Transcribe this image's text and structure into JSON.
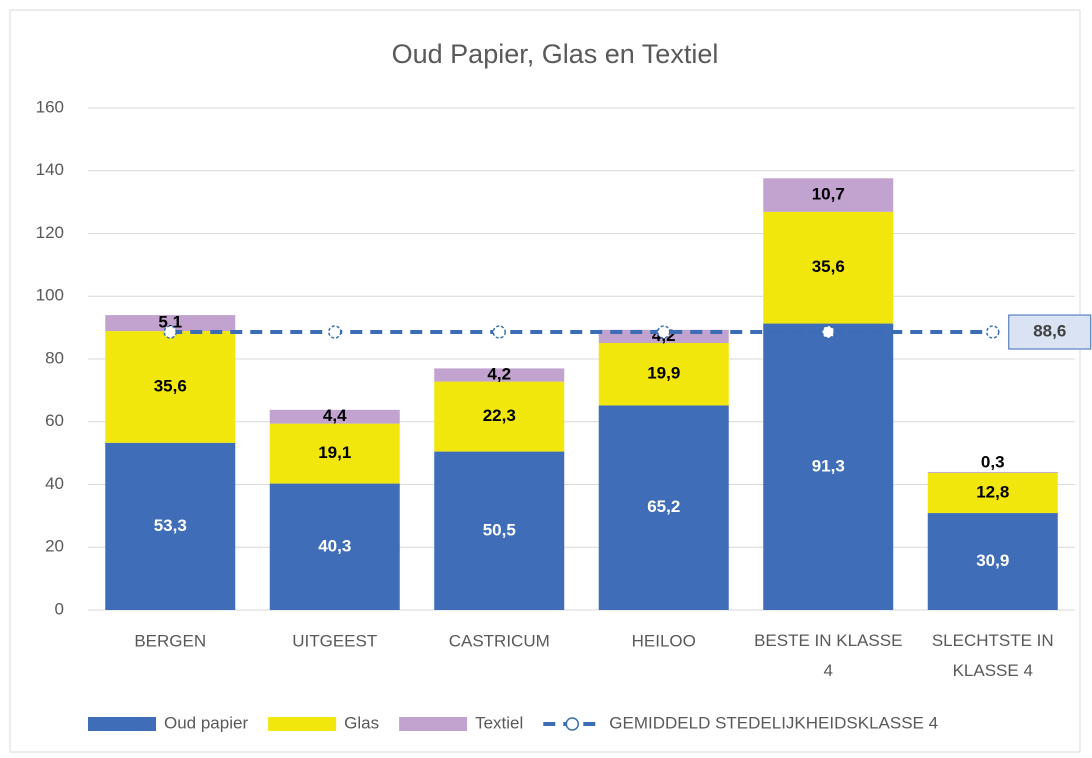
{
  "chart_data": {
    "type": "bar",
    "stacked": true,
    "title": "Oud Papier, Glas en Textiel",
    "categories": [
      "BERGEN",
      "UITGEEST",
      "CASTRICUM",
      "HEILOO",
      "BESTE IN KLASSE 4",
      "SLECHTSTE IN KLASSE 4"
    ],
    "series": [
      {
        "name": "Oud papier",
        "color": "#3f6db8",
        "label_color": "#ffffff",
        "values": [
          53.3,
          40.3,
          50.5,
          65.2,
          91.3,
          30.9
        ],
        "value_labels": [
          "53,3",
          "40,3",
          "50,5",
          "65,2",
          "91,3",
          "30,9"
        ]
      },
      {
        "name": "Glas",
        "color": "#f2e70c",
        "label_color": "#000000",
        "values": [
          35.6,
          19.1,
          22.3,
          19.9,
          35.6,
          12.8
        ],
        "value_labels": [
          "35,6",
          "19,1",
          "22,3",
          "19,9",
          "35,6",
          "12,8"
        ]
      },
      {
        "name": "Textiel",
        "color": "#c2a3cf",
        "label_color": "#000000",
        "values": [
          5.1,
          4.4,
          4.2,
          4.2,
          10.7,
          0.3
        ],
        "value_labels": [
          "5,1",
          "4,4",
          "4,2",
          "4,2",
          "10,7",
          "0,3"
        ]
      },
      {
        "name": "GEMIDDELD STEDELIJKHEIDSKLASSE 4",
        "type": "line",
        "color": "#3a6db5",
        "values": [
          88.6,
          88.6,
          88.6,
          88.6,
          88.6,
          88.6
        ],
        "value_labels": [
          null,
          null,
          null,
          null,
          null,
          "88,6"
        ]
      }
    ],
    "ylim": [
      0,
      160
    ],
    "yticks": [
      0,
      20,
      40,
      60,
      80,
      100,
      120,
      140,
      160
    ],
    "grid": true,
    "legend": "bottom"
  }
}
